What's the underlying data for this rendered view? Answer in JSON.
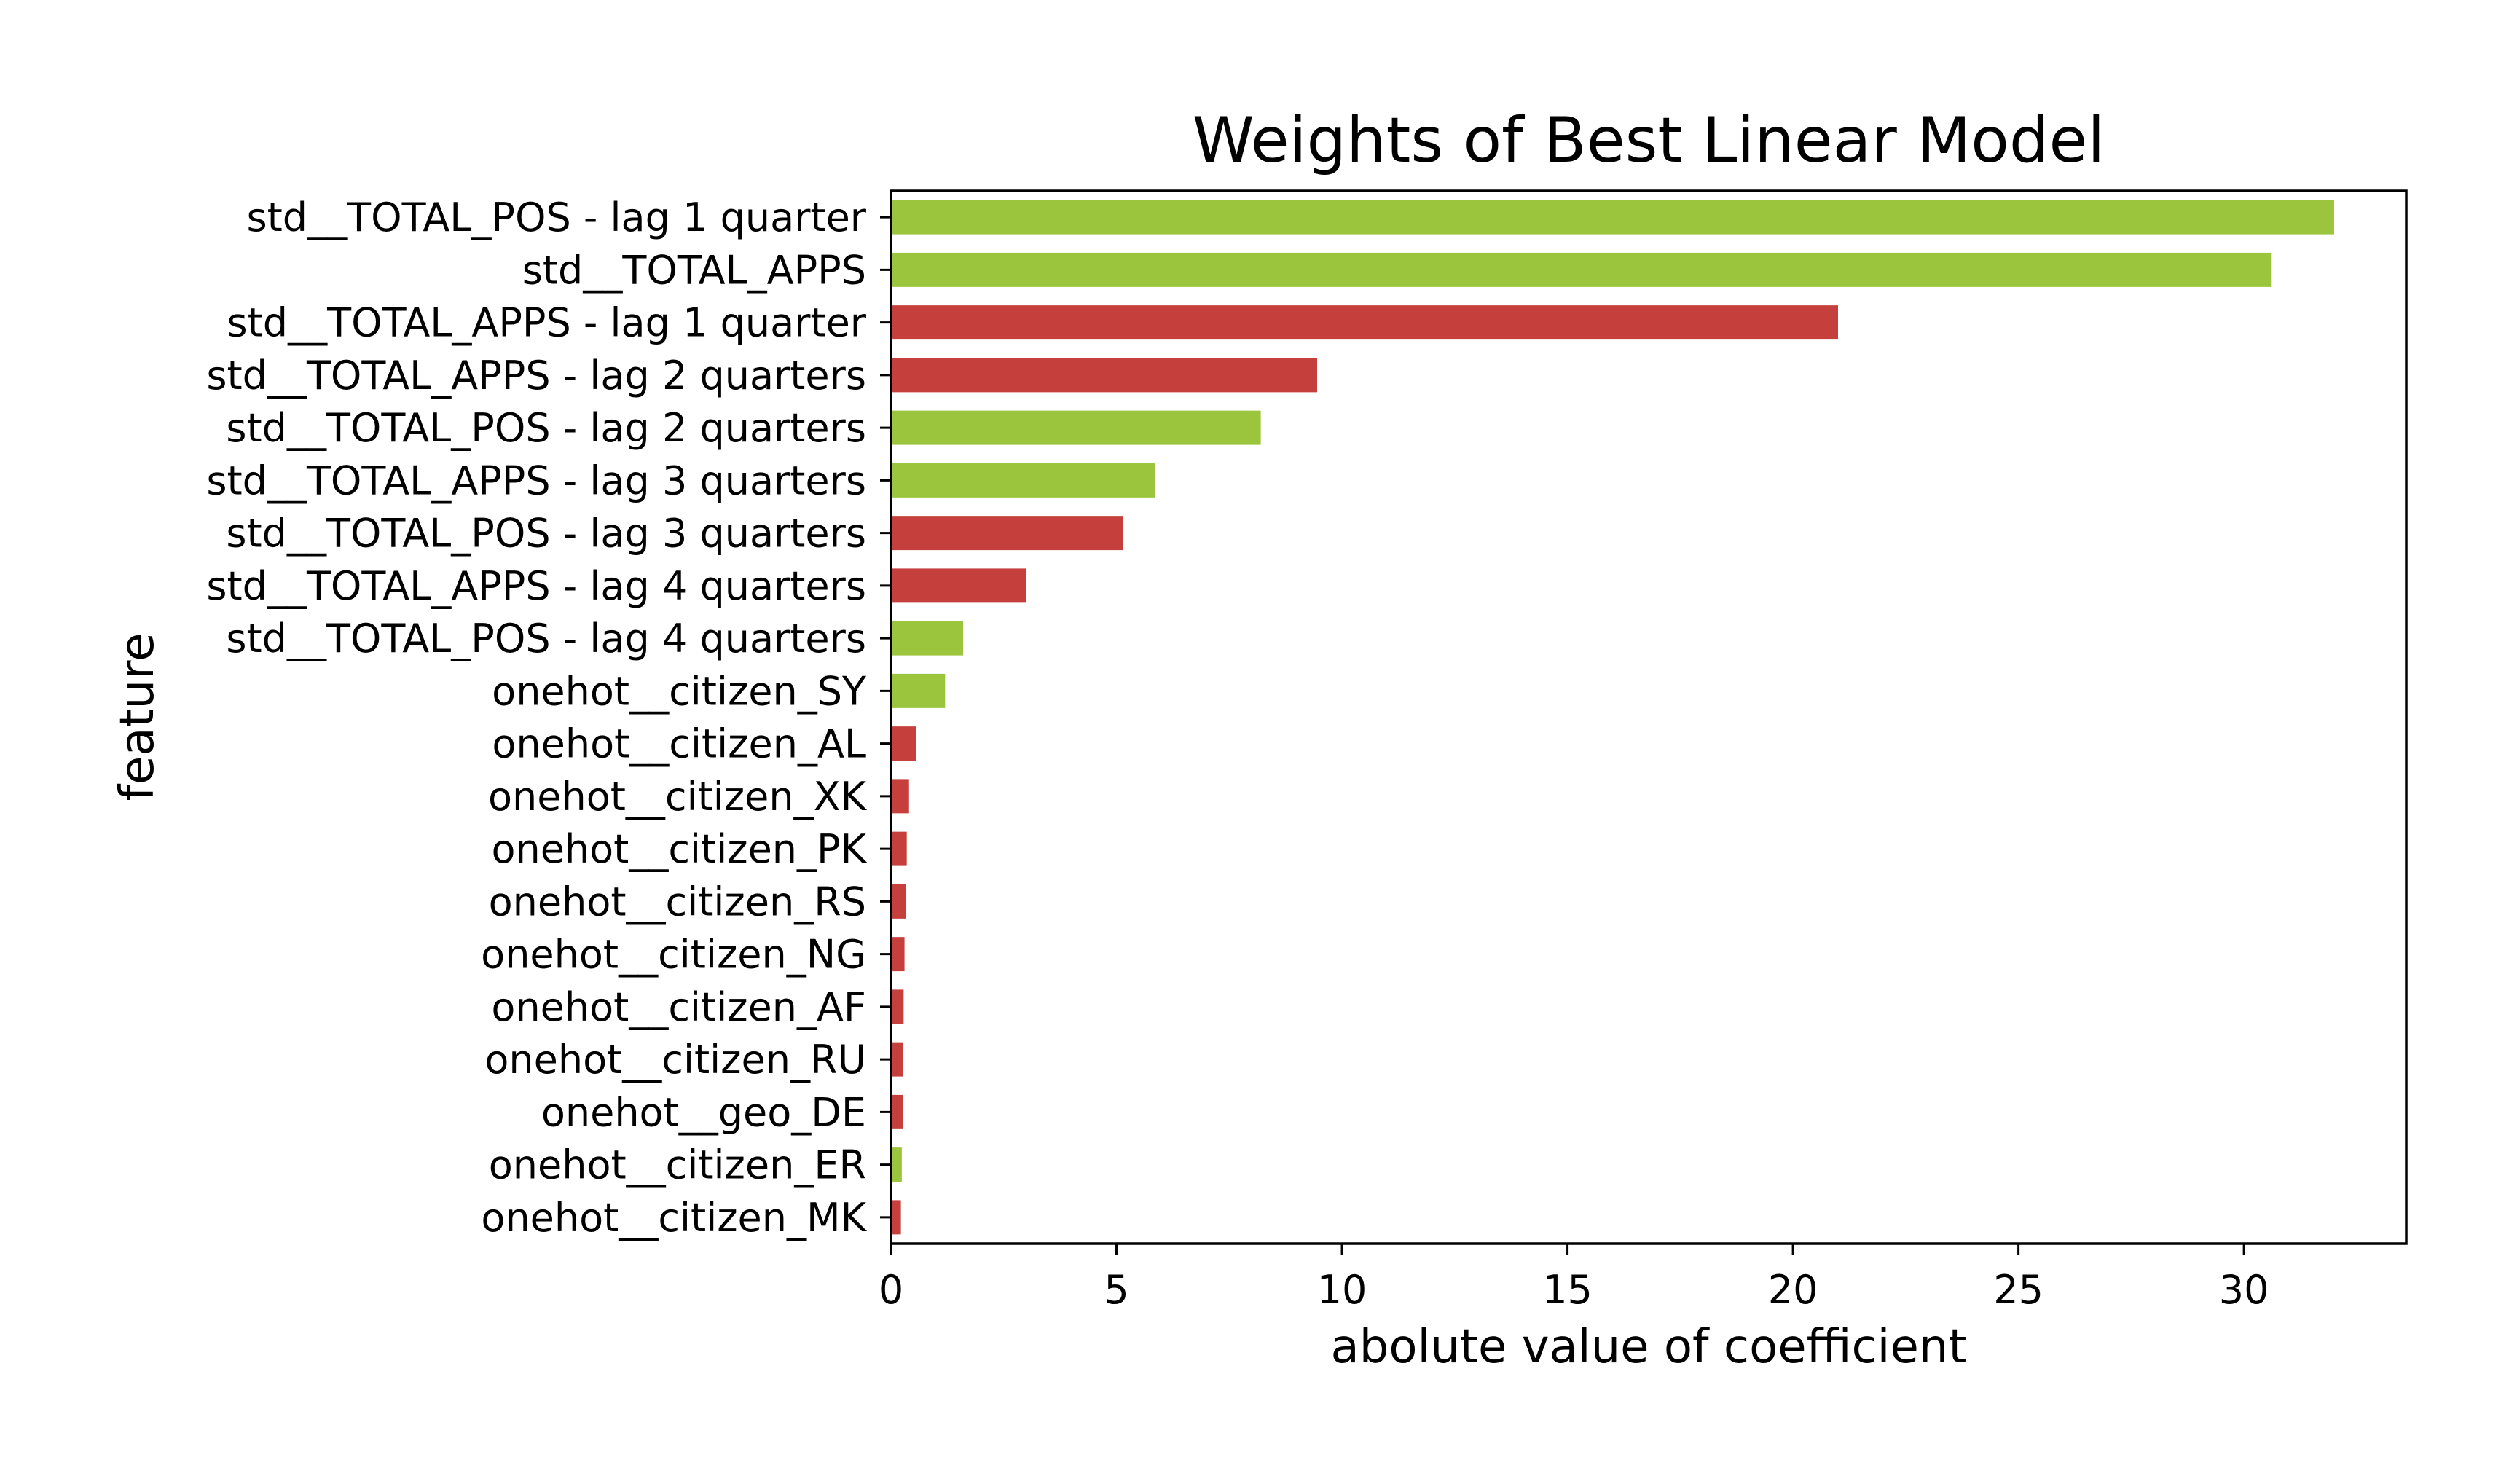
{
  "chart_data": {
    "type": "bar",
    "orientation": "horizontal",
    "title": "Weights of Best Linear Model",
    "xlabel": "abolute value of coefficient",
    "ylabel": "feature",
    "xlim": [
      0,
      33.6
    ],
    "xticks": [
      0,
      5,
      10,
      15,
      20,
      25,
      30
    ],
    "xtick_labels": [
      "0",
      "5",
      "10",
      "15",
      "20",
      "25",
      "30"
    ],
    "grid": false,
    "legend": false,
    "colors": {
      "positive": "#9bc53d",
      "negative": "#c5403d"
    },
    "bars": [
      {
        "label": "std__TOTAL_POS - lag 1 quarter",
        "value": 32.0,
        "color": "#9bc53d"
      },
      {
        "label": "std__TOTAL_APPS",
        "value": 30.6,
        "color": "#9bc53d"
      },
      {
        "label": "std__TOTAL_APPS - lag 1 quarter",
        "value": 21.0,
        "color": "#c5403d"
      },
      {
        "label": "std__TOTAL_APPS - lag 2 quarters",
        "value": 9.45,
        "color": "#c5403d"
      },
      {
        "label": "std__TOTAL_POS - lag 2 quarters",
        "value": 8.2,
        "color": "#9bc53d"
      },
      {
        "label": "std__TOTAL_APPS - lag 3 quarters",
        "value": 5.85,
        "color": "#9bc53d"
      },
      {
        "label": "std__TOTAL_POS - lag 3 quarters",
        "value": 5.15,
        "color": "#c5403d"
      },
      {
        "label": "std__TOTAL_APPS - lag 4 quarters",
        "value": 3.0,
        "color": "#c5403d"
      },
      {
        "label": "std__TOTAL_POS - lag 4 quarters",
        "value": 1.6,
        "color": "#9bc53d"
      },
      {
        "label": "onehot__citizen_SY",
        "value": 1.2,
        "color": "#9bc53d"
      },
      {
        "label": "onehot__citizen_AL",
        "value": 0.55,
        "color": "#c5403d"
      },
      {
        "label": "onehot__citizen_XK",
        "value": 0.4,
        "color": "#c5403d"
      },
      {
        "label": "onehot__citizen_PK",
        "value": 0.35,
        "color": "#c5403d"
      },
      {
        "label": "onehot__citizen_RS",
        "value": 0.33,
        "color": "#c5403d"
      },
      {
        "label": "onehot__citizen_NG",
        "value": 0.3,
        "color": "#c5403d"
      },
      {
        "label": "onehot__citizen_AF",
        "value": 0.28,
        "color": "#c5403d"
      },
      {
        "label": "onehot__citizen_RU",
        "value": 0.27,
        "color": "#c5403d"
      },
      {
        "label": "onehot__geo_DE",
        "value": 0.26,
        "color": "#c5403d"
      },
      {
        "label": "onehot__citizen_ER",
        "value": 0.24,
        "color": "#9bc53d"
      },
      {
        "label": "onehot__citizen_MK",
        "value": 0.22,
        "color": "#c5403d"
      }
    ]
  }
}
